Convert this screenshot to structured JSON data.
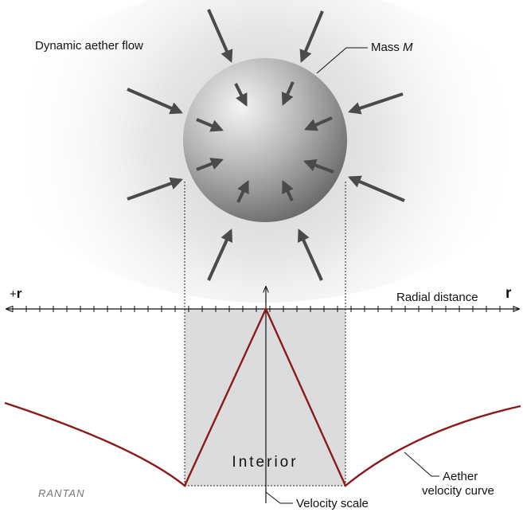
{
  "labels": {
    "flow_title": "Dynamic aether flow",
    "mass_text": "Mass ",
    "mass_symbol": "M",
    "axis_plus_r": "+",
    "axis_plus_r_bold": "r",
    "radial_distance": "Radial distance",
    "axis_r": "r",
    "interior": "Interior",
    "curve_line1": "Aether",
    "curve_line2": "velocity curve",
    "velocity_scale": "Velocity scale",
    "signature": "RANTAN"
  },
  "colors": {
    "curve": "#8b1a1a",
    "arrow": "#4a4a4a",
    "interior_fill": "#dcdcdc",
    "sphere_light": "#f2f2f2",
    "sphere_dark": "#6e6e6e"
  }
}
